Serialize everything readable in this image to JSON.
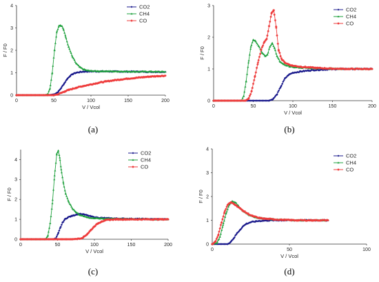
{
  "chart_data": [
    {
      "type": "scatter",
      "panel_label": "(a)",
      "xlabel": "V / Vcol",
      "ylabel": "F / F0",
      "xlim": [
        0,
        200
      ],
      "ylim": [
        0,
        4
      ],
      "xticks": [
        0,
        50,
        100,
        150,
        200
      ],
      "yticks": [
        0,
        1,
        2,
        3,
        4
      ],
      "legend_position": "top-right",
      "series": [
        {
          "name": "CO2",
          "color": "#1a1a8c",
          "x": [
            0,
            40,
            48,
            52,
            56,
            60,
            64,
            68,
            72,
            76,
            80,
            85,
            90,
            100,
            110,
            120,
            140,
            160,
            180,
            200
          ],
          "y": [
            0,
            0,
            0.02,
            0.06,
            0.15,
            0.32,
            0.52,
            0.72,
            0.86,
            0.95,
            1.0,
            1.03,
            1.05,
            1.06,
            1.06,
            1.06,
            1.05,
            1.05,
            1.04,
            1.04
          ]
        },
        {
          "name": "CH4",
          "color": "#1ea03c",
          "x": [
            0,
            38,
            42,
            45,
            48,
            51,
            54,
            57,
            59,
            61,
            63,
            66,
            70,
            75,
            80,
            85,
            90,
            95,
            100,
            110,
            120,
            130,
            140,
            160,
            180,
            200
          ],
          "y": [
            0,
            0,
            0.05,
            0.3,
            1.0,
            2.0,
            2.8,
            3.1,
            3.12,
            3.08,
            2.95,
            2.6,
            2.15,
            1.72,
            1.42,
            1.25,
            1.15,
            1.1,
            1.08,
            1.07,
            1.07,
            1.06,
            1.06,
            1.05,
            1.05,
            1.04
          ]
        },
        {
          "name": "CO",
          "color": "#ee3b3b",
          "x": [
            0,
            50,
            55,
            60,
            65,
            70,
            80,
            90,
            100,
            110,
            120,
            130,
            140,
            150,
            160,
            170,
            180,
            190,
            200
          ],
          "y": [
            0,
            0,
            0.03,
            0.1,
            0.17,
            0.23,
            0.33,
            0.41,
            0.48,
            0.55,
            0.61,
            0.66,
            0.7,
            0.74,
            0.77,
            0.8,
            0.83,
            0.85,
            0.87
          ]
        }
      ]
    },
    {
      "type": "scatter",
      "panel_label": "(b)",
      "xlabel": "V / Vcol",
      "ylabel": "F / F0",
      "xlim": [
        0,
        200
      ],
      "ylim": [
        0,
        3
      ],
      "xticks": [
        0,
        50,
        100,
        150,
        200
      ],
      "yticks": [
        0,
        1,
        2,
        3
      ],
      "legend_position": "top-right",
      "series": [
        {
          "name": "CO2",
          "color": "#1a1a8c",
          "x": [
            0,
            70,
            75,
            80,
            85,
            90,
            95,
            100,
            110,
            120,
            130,
            140,
            150,
            160,
            180,
            200
          ],
          "y": [
            0,
            0,
            0.05,
            0.2,
            0.45,
            0.7,
            0.82,
            0.88,
            0.92,
            0.95,
            0.97,
            0.98,
            0.99,
            1.0,
            1.0,
            1.0
          ]
        },
        {
          "name": "CH4",
          "color": "#1ea03c",
          "x": [
            0,
            35,
            38,
            41,
            44,
            47,
            50,
            53,
            57,
            61,
            65,
            68,
            71,
            74,
            77,
            80,
            84,
            88,
            92,
            96,
            100,
            110,
            120,
            130,
            150,
            170,
            200
          ],
          "y": [
            0,
            0,
            0.15,
            0.6,
            1.2,
            1.7,
            1.92,
            1.88,
            1.72,
            1.52,
            1.4,
            1.45,
            1.7,
            1.82,
            1.65,
            1.4,
            1.22,
            1.15,
            1.1,
            1.08,
            1.06,
            1.04,
            1.03,
            1.02,
            1.01,
            1.0,
            1.0
          ]
        },
        {
          "name": "CO",
          "color": "#ee3b3b",
          "x": [
            0,
            40,
            44,
            48,
            52,
            56,
            60,
            64,
            67,
            70,
            73,
            76,
            79,
            82,
            86,
            90,
            95,
            100,
            110,
            120,
            130,
            150,
            170,
            200
          ],
          "y": [
            0,
            0,
            0.05,
            0.3,
            0.75,
            1.2,
            1.6,
            1.85,
            1.95,
            2.35,
            2.75,
            2.85,
            2.3,
            1.6,
            1.3,
            1.2,
            1.14,
            1.1,
            1.07,
            1.05,
            1.03,
            1.01,
            1.0,
            1.0
          ]
        }
      ]
    },
    {
      "type": "scatter",
      "panel_label": "(c)",
      "xlabel": "V / Vcol",
      "ylabel": "F / F0",
      "xlim": [
        0,
        200
      ],
      "ylim": [
        0,
        4.5
      ],
      "xticks": [
        0,
        50,
        100,
        150,
        200
      ],
      "yticks": [
        0,
        1,
        2,
        3,
        4
      ],
      "legend_position": "top-right",
      "series": [
        {
          "name": "CO2",
          "color": "#1a1a8c",
          "x": [
            0,
            45,
            48,
            51,
            54,
            57,
            60,
            64,
            68,
            72,
            76,
            80,
            85,
            90,
            95,
            100,
            110,
            120,
            140,
            160,
            180,
            200
          ],
          "y": [
            0,
            0,
            0.05,
            0.3,
            0.6,
            0.85,
            1.0,
            1.1,
            1.15,
            1.2,
            1.25,
            1.27,
            1.25,
            1.2,
            1.15,
            1.1,
            1.07,
            1.05,
            1.03,
            1.02,
            1.01,
            1.0
          ]
        },
        {
          "name": "CH4",
          "color": "#1ea03c",
          "x": [
            0,
            34,
            37,
            40,
            43,
            46,
            49,
            51,
            53,
            55,
            58,
            61,
            65,
            70,
            75,
            80,
            90,
            100,
            110,
            120,
            140,
            160,
            180,
            200
          ],
          "y": [
            0,
            0,
            0.2,
            0.8,
            1.8,
            3.2,
            4.3,
            4.45,
            4.1,
            3.5,
            2.8,
            2.3,
            1.9,
            1.55,
            1.35,
            1.22,
            1.1,
            1.06,
            1.04,
            1.03,
            1.02,
            1.01,
            1.0,
            1.0
          ]
        },
        {
          "name": "CO",
          "color": "#ee3b3b",
          "x": [
            0,
            70,
            80,
            85,
            90,
            95,
            100,
            105,
            110,
            115,
            120,
            130,
            140,
            150,
            160,
            180,
            200
          ],
          "y": [
            0,
            0,
            0.03,
            0.1,
            0.25,
            0.45,
            0.65,
            0.8,
            0.9,
            0.95,
            0.98,
            1.0,
            1.0,
            1.0,
            1.0,
            1.0,
            1.0
          ]
        }
      ]
    },
    {
      "type": "scatter",
      "panel_label": "(d)",
      "xlabel": "V / Vcol",
      "ylabel": "F / F0",
      "xlim": [
        0,
        100
      ],
      "ylim": [
        0,
        4
      ],
      "xticks": [
        0,
        50,
        100
      ],
      "yticks": [
        0,
        1,
        2,
        3,
        4
      ],
      "legend_position": "top-right",
      "series": [
        {
          "name": "CO2",
          "color": "#1a1a8c",
          "x": [
            0,
            10,
            12,
            14,
            16,
            18,
            20,
            22,
            25,
            28,
            30,
            35,
            40,
            45,
            50,
            55,
            60,
            65,
            70,
            75
          ],
          "y": [
            0,
            0,
            0.1,
            0.25,
            0.45,
            0.6,
            0.75,
            0.85,
            0.92,
            0.95,
            0.97,
            0.99,
            1.0,
            1.0,
            1.0,
            1.0,
            1.0,
            1.0,
            1.0,
            1.0
          ]
        },
        {
          "name": "CH4",
          "color": "#1ea03c",
          "x": [
            0,
            3,
            5,
            7,
            9,
            11,
            13,
            15,
            17,
            19,
            21,
            24,
            27,
            30,
            35,
            40,
            45,
            50,
            55,
            60,
            65,
            70,
            75
          ],
          "y": [
            0,
            0.05,
            0.3,
            0.8,
            1.3,
            1.65,
            1.8,
            1.75,
            1.6,
            1.45,
            1.35,
            1.22,
            1.15,
            1.1,
            1.06,
            1.04,
            1.02,
            1.01,
            1.0,
            1.0,
            1.0,
            1.0,
            1.0
          ]
        },
        {
          "name": "CO",
          "color": "#ee3b3b",
          "x": [
            0,
            2,
            4,
            6,
            8,
            10,
            12,
            14,
            16,
            18,
            20,
            23,
            26,
            30,
            35,
            40,
            45,
            50,
            55,
            60,
            65,
            70,
            75
          ],
          "y": [
            0,
            0.1,
            0.4,
            0.9,
            1.35,
            1.65,
            1.75,
            1.7,
            1.6,
            1.5,
            1.4,
            1.28,
            1.18,
            1.1,
            1.06,
            1.04,
            1.02,
            1.01,
            1.0,
            1.0,
            1.0,
            1.0,
            1.0
          ]
        }
      ]
    }
  ]
}
